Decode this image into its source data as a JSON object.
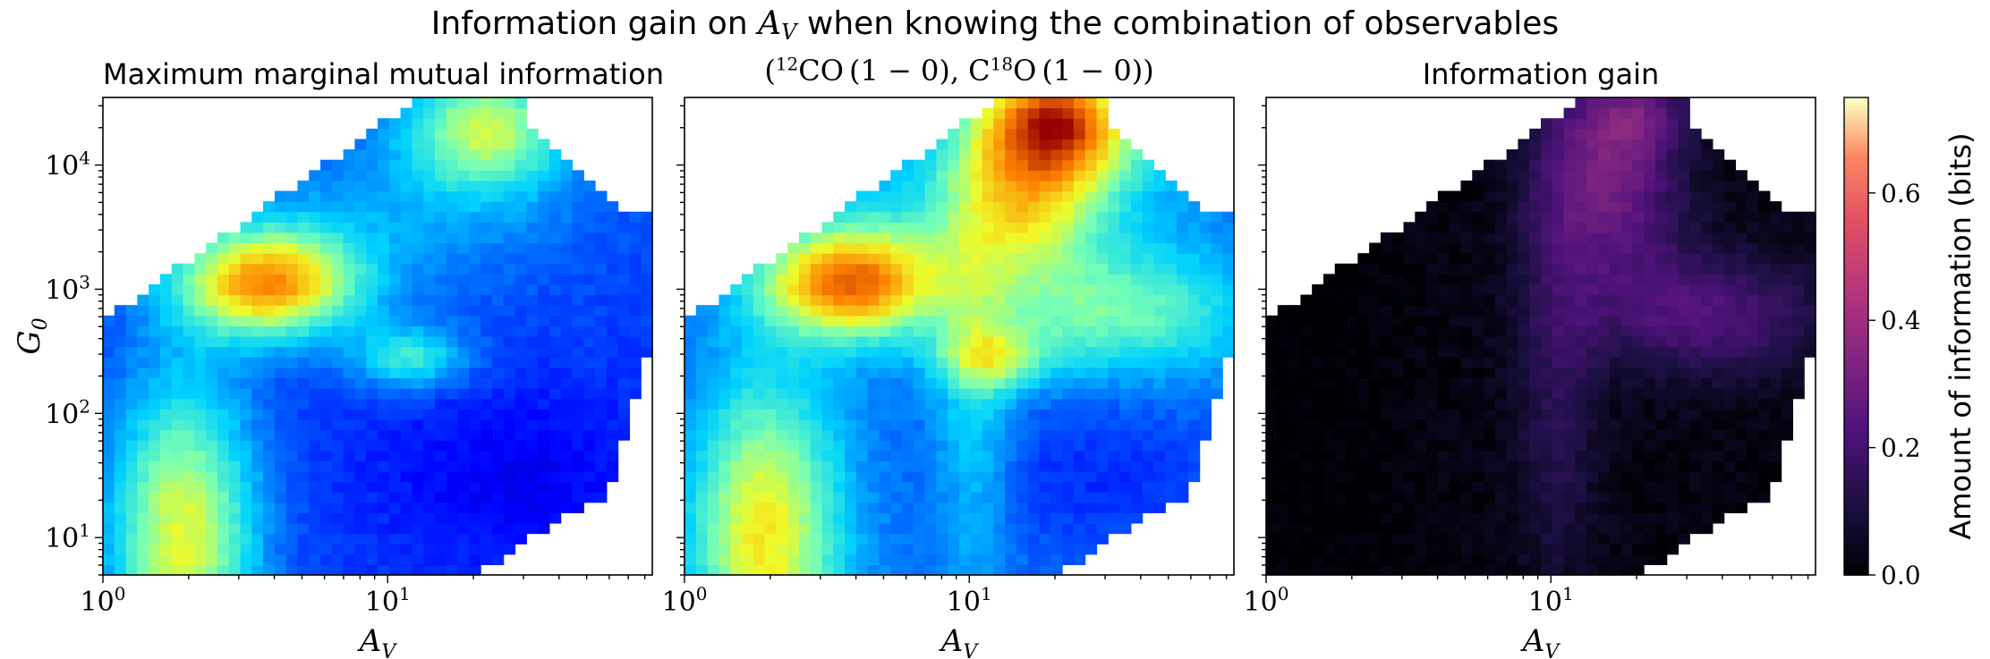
{
  "figure": {
    "title_prefix": "Information gain on ",
    "title_var": "A",
    "title_var_sub": "V",
    "title_suffix": " when knowing the combination of observables"
  },
  "chart_data": [
    {
      "type": "heatmap",
      "title": "Maximum marginal mutual information",
      "xlabel": "A_V",
      "ylabel": "G_0",
      "x_scale": "log",
      "y_scale": "log",
      "xlim": [
        1,
        85
      ],
      "ylim": [
        5,
        35000
      ],
      "x_ticks": [
        "10^0",
        "10^1"
      ],
      "y_ticks": [
        "10^1",
        "10^2",
        "10^3",
        "10^4"
      ],
      "colormap": "jet",
      "hotspots": [
        {
          "A_V": 3.8,
          "G_0": 1100,
          "value": 0.55
        },
        {
          "A_V": 25,
          "G_0": 25000,
          "value": 0.52
        },
        {
          "A_V": 2,
          "G_0": 8,
          "value": 0.5
        },
        {
          "A_V": 12,
          "G_0": 300,
          "value": 0.35
        }
      ]
    },
    {
      "type": "heatmap",
      "title": "(12CO (1-0), C18O (1-0))",
      "xlabel": "A_V",
      "x_scale": "log",
      "y_scale": "log",
      "xlim": [
        1,
        85
      ],
      "ylim": [
        5,
        35000
      ],
      "x_ticks": [
        "10^0",
        "10^1"
      ],
      "colormap": "jet",
      "hotspots": [
        {
          "A_V": 23,
          "G_0": 12000,
          "value": 0.72
        },
        {
          "A_V": 3.8,
          "G_0": 1100,
          "value": 0.58
        },
        {
          "A_V": 2,
          "G_0": 8,
          "value": 0.5
        }
      ]
    },
    {
      "type": "heatmap",
      "title": "Information gain",
      "xlabel": "A_V",
      "x_scale": "log",
      "y_scale": "log",
      "xlim": [
        1,
        85
      ],
      "ylim": [
        5,
        35000
      ],
      "x_ticks": [
        "10^0",
        "10^1"
      ],
      "colormap": "magma",
      "hotspots": [
        {
          "A_V": 20,
          "G_0": 25000,
          "value": 0.45
        },
        {
          "A_V": 12,
          "G_0": 1200,
          "value": 0.35
        },
        {
          "A_V": 30,
          "G_0": 500,
          "value": 0.3
        }
      ]
    }
  ],
  "panel_titles": {
    "left": "Maximum marginal mutual information",
    "middle_open": "(",
    "middle_iso1_sup": "12",
    "middle_iso1": "CO",
    "middle_tr1": "(1 − 0), C",
    "middle_iso2_sup": "18",
    "middle_iso2": "O",
    "middle_tr2": "(1 − 0)",
    "middle_close": ")",
    "right": "Information gain"
  },
  "axes": {
    "x_var": "A",
    "x_sub": "V",
    "y_var": "G",
    "y_sub": "0",
    "x_tick_base": "10",
    "x_tick_exps": [
      "0",
      "1"
    ],
    "y_tick_base": "10",
    "y_tick_exps": [
      "1",
      "2",
      "3",
      "4"
    ]
  },
  "colorbar": {
    "label": "Amount of information (bits)",
    "min": 0.0,
    "max": 0.75,
    "ticks": [
      "0.0",
      "0.2",
      "0.4",
      "0.6"
    ],
    "tick_values": [
      0.0,
      0.2,
      0.4,
      0.6
    ],
    "colormap": "magma"
  }
}
